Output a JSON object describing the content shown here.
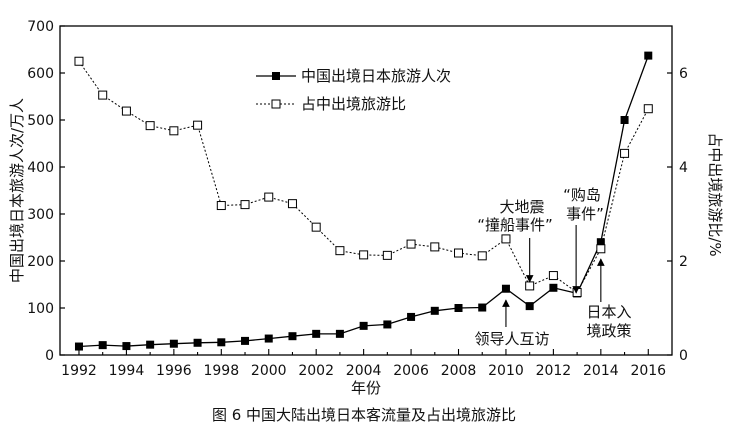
{
  "chart_data": {
    "type": "line",
    "x": [
      1992,
      1993,
      1994,
      1995,
      1996,
      1997,
      1998,
      1999,
      2000,
      2001,
      2002,
      2003,
      2004,
      2005,
      2006,
      2007,
      2008,
      2009,
      2010,
      2011,
      2012,
      2013,
      2014,
      2015,
      2016
    ],
    "xlabel": "年份",
    "ylabel": "中国出境日本旅游人次/万人",
    "y2label": "占中出境旅游比/%",
    "xticks": [
      1992,
      1994,
      1996,
      1998,
      2000,
      2002,
      2004,
      2006,
      2008,
      2010,
      2012,
      2014,
      2016
    ],
    "yticks": [
      0,
      100,
      200,
      300,
      400,
      500,
      600,
      700
    ],
    "y2ticks": [
      0,
      2,
      4,
      6
    ],
    "xlim": [
      1991.2,
      2017.0
    ],
    "ylim": [
      0,
      700
    ],
    "y2lim": [
      0,
      7
    ],
    "legend_position": "top-center",
    "series": [
      {
        "name": "中国出境日本旅游人次",
        "axis": "left",
        "marker": "filled-square",
        "line": "solid",
        "values": [
          18,
          21,
          19,
          22,
          24,
          26,
          27,
          30,
          35,
          40,
          45,
          45,
          62,
          65,
          81,
          94,
          100,
          101,
          141,
          104,
          143,
          131,
          240,
          500,
          637
        ]
      },
      {
        "name": "占中出境旅游比",
        "axis": "right",
        "marker": "open-square",
        "line": "dotted",
        "values": [
          6.25,
          5.53,
          5.19,
          4.88,
          4.77,
          4.89,
          3.18,
          3.2,
          3.36,
          3.22,
          2.72,
          2.22,
          2.13,
          2.12,
          2.36,
          2.3,
          2.17,
          2.11,
          2.47,
          1.47,
          1.69,
          1.33,
          2.26,
          4.29,
          5.24
        ]
      }
    ],
    "annotations": [
      {
        "lines": [
          "大地震",
          "“撞船事件”"
        ],
        "year": 2011
      },
      {
        "lines": [
          "“购岛",
          "事件”"
        ],
        "year": 2013
      },
      {
        "lines": [
          "领导人互访"
        ],
        "year": 2010
      },
      {
        "lines": [
          "日本入",
          "境政策"
        ],
        "year": 2014
      }
    ]
  },
  "caption": "图 6    中国大陆出境日本客流量及占出境旅游比"
}
